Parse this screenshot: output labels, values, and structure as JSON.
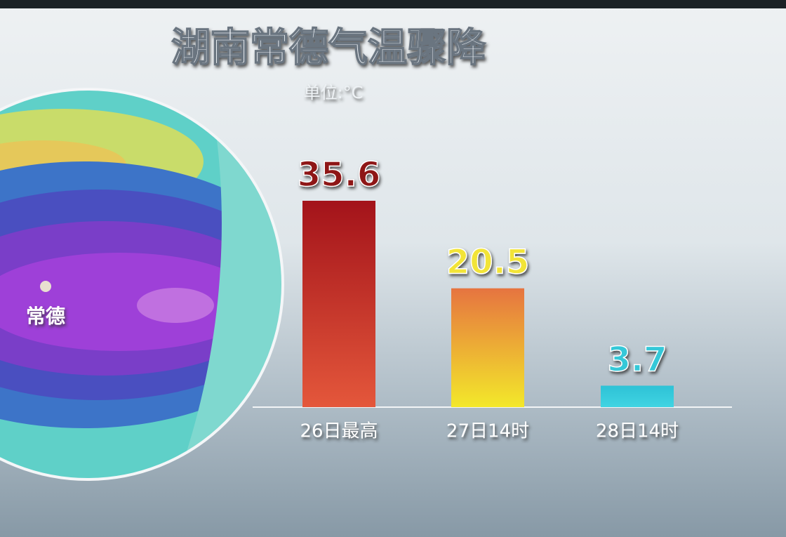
{
  "chart_data": {
    "type": "bar",
    "title": "湖南常德气温骤降",
    "subtitle": "单位:°C",
    "map_label": "常德",
    "categories": [
      "26日最高",
      "27日14时",
      "28日14时"
    ],
    "values": [
      35.6,
      20.5,
      3.7
    ],
    "colors": [
      [
        "#a3131a",
        "#e4573b"
      ],
      [
        "#e67440",
        "#f3e82a"
      ],
      [
        "#2ec2d6",
        "#40d4e2"
      ]
    ],
    "label_colors": [
      "#8e1414",
      "#f2e438",
      "#35c8d8"
    ]
  }
}
